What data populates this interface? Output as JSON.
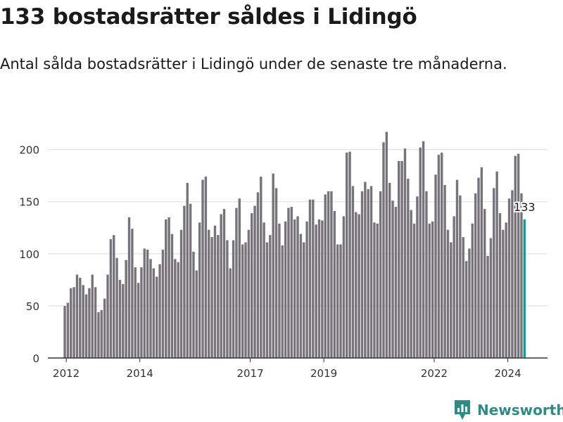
{
  "header": {
    "title": "133 bostadsrätter såldes i Lidingö",
    "subtitle": "Antal sålda bostadsrätter i Lidingö under de senaste tre månaderna."
  },
  "brand": {
    "name": "Newsworthy",
    "icon": "bar-chart-badge-icon",
    "color": "#2e8b87"
  },
  "colors": {
    "bar": "#76747a",
    "highlight": "#1a9a96",
    "grid": "#dddddd",
    "axis": "#333333"
  },
  "chart_data": {
    "type": "bar",
    "title": "133 bostadsrätter såldes i Lidingö",
    "xlabel": "",
    "ylabel": "",
    "ylim": [
      0,
      220
    ],
    "yticks": [
      0,
      50,
      100,
      150,
      200
    ],
    "xlim": [
      2011.5,
      2025.08
    ],
    "x_ticks": [
      {
        "label": "2012",
        "x": 2012.0
      },
      {
        "label": "2014",
        "x": 2014.0
      },
      {
        "label": "2017",
        "x": 2017.0
      },
      {
        "label": "2019",
        "x": 2019.0
      },
      {
        "label": "2022",
        "x": 2022.0
      },
      {
        "label": "2024",
        "x": 2024.0
      }
    ],
    "x_start": 2011.96,
    "x_step": 0.0833,
    "values": [
      50,
      53,
      67,
      68,
      80,
      77,
      70,
      61,
      67,
      80,
      68,
      44,
      46,
      57,
      80,
      114,
      118,
      96,
      75,
      71,
      94,
      135,
      124,
      87,
      72,
      87,
      105,
      104,
      95,
      86,
      78,
      90,
      104,
      133,
      135,
      119,
      95,
      92,
      123,
      146,
      168,
      148,
      102,
      84,
      130,
      171,
      174,
      123,
      116,
      127,
      118,
      138,
      143,
      113,
      86,
      113,
      144,
      153,
      109,
      111,
      123,
      139,
      146,
      159,
      174,
      130,
      111,
      118,
      177,
      163,
      129,
      108,
      131,
      144,
      145,
      133,
      136,
      119,
      111,
      131,
      152,
      152,
      128,
      133,
      132,
      157,
      160,
      160,
      141,
      109,
      109,
      136,
      197,
      198,
      165,
      140,
      138,
      160,
      169,
      162,
      165,
      130,
      129,
      160,
      207,
      217,
      168,
      151,
      145,
      189,
      189,
      201,
      172,
      142,
      129,
      155,
      202,
      208,
      160,
      129,
      131,
      176,
      195,
      197,
      166,
      123,
      111,
      136,
      171,
      156,
      116,
      93,
      105,
      129,
      158,
      173,
      183,
      143,
      98,
      115,
      163,
      179,
      139,
      123,
      130,
      153,
      161,
      194,
      196,
      158,
      133
    ],
    "highlight_index": 150,
    "annotation": "133"
  }
}
